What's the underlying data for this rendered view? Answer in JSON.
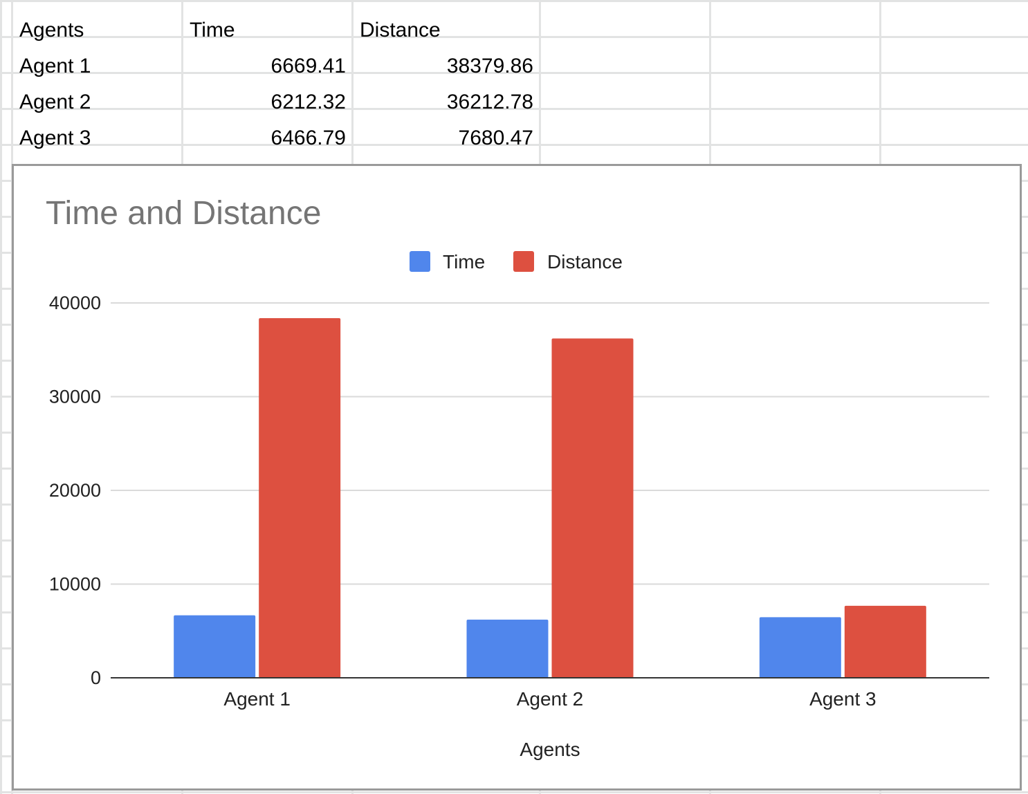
{
  "sheet": {
    "headers": [
      "Agents",
      "Time",
      "Distance"
    ],
    "rows": [
      {
        "agent": "Agent 1",
        "time": "6669.41",
        "distance": "38379.86"
      },
      {
        "agent": "Agent 2",
        "time": "6212.32",
        "distance": "36212.78"
      },
      {
        "agent": "Agent 3",
        "time": "6466.79",
        "distance": "7680.47"
      }
    ]
  },
  "chart_data": {
    "type": "bar",
    "title": "Time and Distance",
    "xlabel": "Agents",
    "ylabel": "",
    "categories": [
      "Agent 1",
      "Agent 2",
      "Agent 3"
    ],
    "series": [
      {
        "name": "Time",
        "color": "#5086ec",
        "values": [
          6669.41,
          6212.32,
          6466.79
        ]
      },
      {
        "name": "Distance",
        "color": "#dd5040",
        "values": [
          38379.86,
          36212.78,
          7680.47
        ]
      }
    ],
    "ylim": [
      0,
      40000
    ],
    "yticks": [
      "0",
      "10000",
      "20000",
      "30000",
      "40000"
    ],
    "grid": true,
    "legend": "top"
  }
}
